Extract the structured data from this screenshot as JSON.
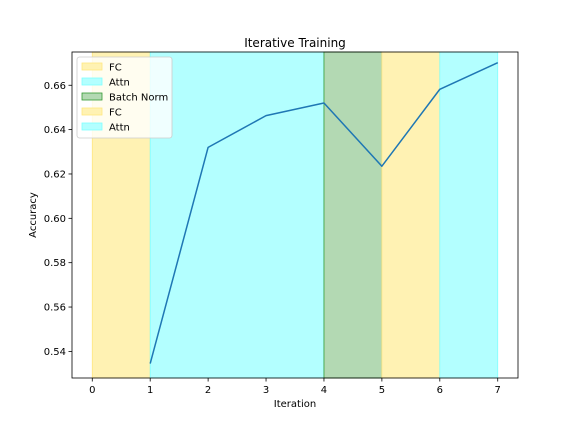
{
  "chart_data": {
    "type": "line",
    "title": "Iterative Training",
    "xlabel": "Iteration",
    "ylabel": "Accuracy",
    "xlim": [
      -0.35,
      7.35
    ],
    "ylim": [
      0.528,
      0.675
    ],
    "grid": false,
    "legend_placement": "top-left",
    "x_ticks": [
      0,
      1,
      2,
      3,
      4,
      5,
      6,
      7
    ],
    "x_tick_labels": [
      "0",
      "1",
      "2",
      "3",
      "4",
      "5",
      "6",
      "7"
    ],
    "y_ticks": [
      0.54,
      0.56,
      0.58,
      0.6,
      0.62,
      0.64,
      0.66
    ],
    "y_tick_labels": [
      "0.54",
      "0.56",
      "0.58",
      "0.60",
      "0.62",
      "0.64",
      "0.66"
    ],
    "series": [
      {
        "color": "#1f77b4",
        "x": [
          1,
          2,
          3,
          4,
          5,
          6,
          7
        ],
        "values": [
          0.5345,
          0.632,
          0.6463,
          0.652,
          0.6235,
          0.6582,
          0.6702
        ]
      }
    ],
    "spans": [
      {
        "label": "FC",
        "x0": 0,
        "x1": 1,
        "color": "#fff2b3",
        "edge": "#ffe680"
      },
      {
        "label": "Attn",
        "x0": 1,
        "x1": 4,
        "color": "#b3ffff",
        "edge": "#80ffff"
      },
      {
        "label": "Batch Norm",
        "x0": 4,
        "x1": 5,
        "color": "#b3d9b3",
        "edge": "#339933"
      },
      {
        "label": "FC",
        "x0": 5,
        "x1": 6,
        "color": "#fff2b3",
        "edge": "#ffe680"
      },
      {
        "label": "Attn",
        "x0": 6,
        "x1": 7,
        "color": "#b3ffff",
        "edge": "#80ffff"
      }
    ]
  }
}
